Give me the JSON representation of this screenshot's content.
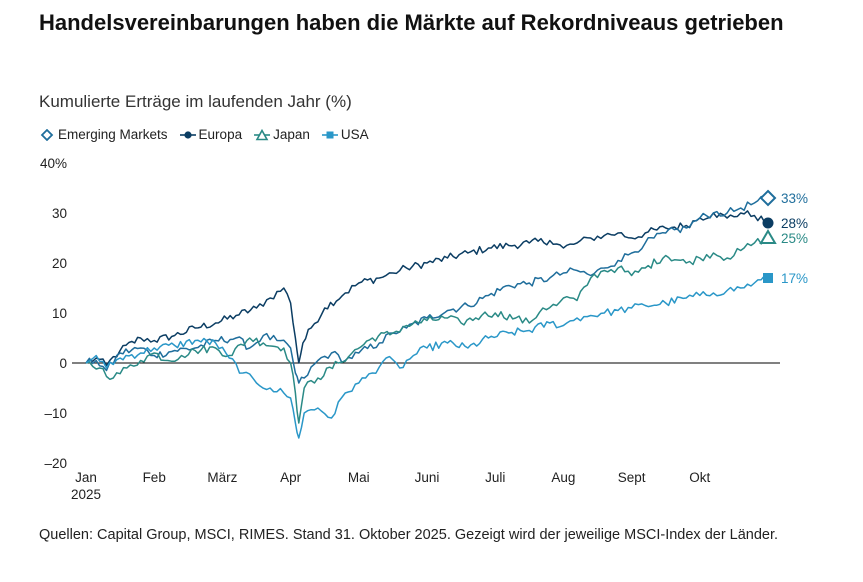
{
  "title": "Handelsvereinbarungen haben die Märkte auf Rekordniveaus getrieben",
  "subtitle": "Kumulierte Erträge im laufenden Jahr (%)",
  "source": "Quellen: Capital Group, MSCI, RIMES. Stand 31. Oktober 2025. Gezeigt wird der jeweilige MSCI-Index der Länder.",
  "colors": {
    "emerging": "#1f6e9c",
    "europa": "#0b3d63",
    "japan": "#2a8a86",
    "usa": "#2a97c8",
    "axis": "#000000"
  },
  "chart_data": {
    "type": "line",
    "title": "Handelsvereinbarungen haben die Märkte auf Rekordniveaus getrieben",
    "ylabel": "Kumulierte Erträge im laufenden Jahr (%)",
    "xlabel": "",
    "ylim": [
      -20,
      40
    ],
    "yticks": [
      -20,
      -10,
      0,
      10,
      20,
      30,
      40
    ],
    "ytick_labels": [
      "–20",
      "–10",
      "0",
      "10",
      "20",
      "30",
      "40%"
    ],
    "xlim": [
      0,
      10
    ],
    "xticks": [
      {
        "pos": 0,
        "label": "Jan",
        "sublabel": "2025"
      },
      {
        "pos": 1,
        "label": "Feb"
      },
      {
        "pos": 2,
        "label": "März"
      },
      {
        "pos": 3,
        "label": "Apr"
      },
      {
        "pos": 4,
        "label": "Mai"
      },
      {
        "pos": 5,
        "label": "Juni"
      },
      {
        "pos": 6,
        "label": "Juli"
      },
      {
        "pos": 7,
        "label": "Aug"
      },
      {
        "pos": 8,
        "label": "Sept"
      },
      {
        "pos": 9,
        "label": "Okt"
      }
    ],
    "series": [
      {
        "name": "Emerging Markets",
        "key": "emerging",
        "marker": "diamond",
        "end_label": "33%",
        "points": [
          [
            0,
            0
          ],
          [
            0.15,
            0.5
          ],
          [
            0.3,
            -1.5
          ],
          [
            0.5,
            2
          ],
          [
            0.8,
            3
          ],
          [
            1.0,
            1.5
          ],
          [
            1.3,
            2.5
          ],
          [
            1.6,
            3
          ],
          [
            1.9,
            4.5
          ],
          [
            2.2,
            5
          ],
          [
            2.4,
            3
          ],
          [
            2.6,
            5.5
          ],
          [
            2.8,
            4.5
          ],
          [
            3.0,
            3
          ],
          [
            3.07,
            -2
          ],
          [
            3.12,
            -4
          ],
          [
            3.2,
            -3
          ],
          [
            3.4,
            0.5
          ],
          [
            3.6,
            2
          ],
          [
            3.8,
            0.5
          ],
          [
            4.0,
            2
          ],
          [
            4.3,
            4
          ],
          [
            4.5,
            6
          ],
          [
            4.7,
            7
          ],
          [
            5.0,
            9
          ],
          [
            5.3,
            10.5
          ],
          [
            5.6,
            11.5
          ],
          [
            5.9,
            13.5
          ],
          [
            6.2,
            15.5
          ],
          [
            6.5,
            16
          ],
          [
            6.8,
            17
          ],
          [
            7.0,
            18
          ],
          [
            7.2,
            18.5
          ],
          [
            7.4,
            17.5
          ],
          [
            7.6,
            19
          ],
          [
            7.8,
            20.5
          ],
          [
            8.0,
            22
          ],
          [
            8.2,
            24
          ],
          [
            8.5,
            26
          ],
          [
            8.8,
            27
          ],
          [
            9.0,
            29
          ],
          [
            9.2,
            30
          ],
          [
            9.4,
            30
          ],
          [
            9.6,
            31
          ],
          [
            9.8,
            32
          ],
          [
            10,
            33
          ]
        ]
      },
      {
        "name": "Europa",
        "key": "europa",
        "marker": "circle",
        "end_label": "28%",
        "points": [
          [
            0,
            0
          ],
          [
            0.15,
            1
          ],
          [
            0.3,
            -0.5
          ],
          [
            0.5,
            2.5
          ],
          [
            0.8,
            5
          ],
          [
            1.0,
            4.5
          ],
          [
            1.3,
            5.5
          ],
          [
            1.6,
            7
          ],
          [
            1.9,
            8
          ],
          [
            2.2,
            9.5
          ],
          [
            2.5,
            11
          ],
          [
            2.7,
            13
          ],
          [
            2.9,
            15
          ],
          [
            3.0,
            12
          ],
          [
            3.07,
            5
          ],
          [
            3.12,
            0
          ],
          [
            3.18,
            4
          ],
          [
            3.3,
            7
          ],
          [
            3.5,
            11
          ],
          [
            3.8,
            14
          ],
          [
            4.0,
            16
          ],
          [
            4.3,
            17
          ],
          [
            4.5,
            18
          ],
          [
            4.7,
            19
          ],
          [
            5.0,
            20
          ],
          [
            5.3,
            21
          ],
          [
            5.6,
            22
          ],
          [
            5.9,
            23
          ],
          [
            6.2,
            23.5
          ],
          [
            6.5,
            24
          ],
          [
            6.8,
            24.5
          ],
          [
            7.0,
            23
          ],
          [
            7.2,
            24
          ],
          [
            7.4,
            25
          ],
          [
            7.6,
            25.5
          ],
          [
            7.8,
            26
          ],
          [
            8.0,
            25
          ],
          [
            8.2,
            26
          ],
          [
            8.5,
            27
          ],
          [
            8.8,
            27.5
          ],
          [
            9.0,
            29
          ],
          [
            9.2,
            30
          ],
          [
            9.4,
            29
          ],
          [
            9.6,
            30
          ],
          [
            9.8,
            29.5
          ],
          [
            10,
            28
          ]
        ]
      },
      {
        "name": "Japan",
        "key": "japan",
        "marker": "triangle",
        "end_label": "25%",
        "points": [
          [
            0,
            0
          ],
          [
            0.2,
            -1
          ],
          [
            0.4,
            -3
          ],
          [
            0.6,
            -1
          ],
          [
            0.8,
            0.5
          ],
          [
            1.0,
            2
          ],
          [
            1.2,
            0.5
          ],
          [
            1.4,
            1.5
          ],
          [
            1.6,
            2.5
          ],
          [
            1.9,
            3
          ],
          [
            2.1,
            1.5
          ],
          [
            2.4,
            5
          ],
          [
            2.6,
            4
          ],
          [
            2.9,
            3
          ],
          [
            3.0,
            0
          ],
          [
            3.07,
            -6
          ],
          [
            3.12,
            -12
          ],
          [
            3.2,
            -5
          ],
          [
            3.4,
            -3
          ],
          [
            3.7,
            0
          ],
          [
            3.9,
            2
          ],
          [
            4.2,
            5
          ],
          [
            4.5,
            6
          ],
          [
            4.7,
            7.5
          ],
          [
            5.0,
            8.5
          ],
          [
            5.3,
            9
          ],
          [
            5.5,
            8
          ],
          [
            5.8,
            9.5
          ],
          [
            6.0,
            10
          ],
          [
            6.3,
            9
          ],
          [
            6.5,
            8
          ],
          [
            6.7,
            11
          ],
          [
            6.9,
            11.5
          ],
          [
            7.0,
            13
          ],
          [
            7.2,
            12.5
          ],
          [
            7.4,
            17
          ],
          [
            7.6,
            18.5
          ],
          [
            7.8,
            19
          ],
          [
            8.0,
            17.5
          ],
          [
            8.2,
            19
          ],
          [
            8.5,
            21.5
          ],
          [
            8.8,
            20
          ],
          [
            9.0,
            21
          ],
          [
            9.2,
            22
          ],
          [
            9.4,
            21
          ],
          [
            9.6,
            22.5
          ],
          [
            9.8,
            24
          ],
          [
            10,
            25
          ]
        ]
      },
      {
        "name": "USA",
        "key": "usa",
        "marker": "square",
        "end_label": "17%",
        "points": [
          [
            0,
            0
          ],
          [
            0.15,
            1.5
          ],
          [
            0.3,
            -1
          ],
          [
            0.5,
            1
          ],
          [
            0.8,
            2
          ],
          [
            1.0,
            3
          ],
          [
            1.3,
            3.5
          ],
          [
            1.6,
            4.5
          ],
          [
            1.9,
            4
          ],
          [
            2.1,
            1
          ],
          [
            2.3,
            -2
          ],
          [
            2.5,
            -4
          ],
          [
            2.7,
            -5
          ],
          [
            2.9,
            -6
          ],
          [
            3.0,
            -7
          ],
          [
            3.07,
            -12
          ],
          [
            3.12,
            -15
          ],
          [
            3.2,
            -10
          ],
          [
            3.4,
            -9
          ],
          [
            3.6,
            -11
          ],
          [
            3.8,
            -6
          ],
          [
            4.0,
            -4
          ],
          [
            4.2,
            -2
          ],
          [
            4.4,
            1
          ],
          [
            4.6,
            -1
          ],
          [
            4.8,
            1.5
          ],
          [
            5.0,
            3
          ],
          [
            5.3,
            4
          ],
          [
            5.6,
            3
          ],
          [
            5.9,
            5
          ],
          [
            6.2,
            6
          ],
          [
            6.5,
            6.5
          ],
          [
            6.8,
            8
          ],
          [
            7.0,
            7.5
          ],
          [
            7.2,
            9
          ],
          [
            7.4,
            9.5
          ],
          [
            7.6,
            10
          ],
          [
            7.8,
            10.5
          ],
          [
            8.0,
            11
          ],
          [
            8.2,
            11.5
          ],
          [
            8.5,
            12
          ],
          [
            8.8,
            13
          ],
          [
            9.0,
            13.5
          ],
          [
            9.2,
            14
          ],
          [
            9.4,
            14.5
          ],
          [
            9.6,
            15
          ],
          [
            9.8,
            16
          ],
          [
            10,
            17
          ]
        ]
      }
    ]
  }
}
